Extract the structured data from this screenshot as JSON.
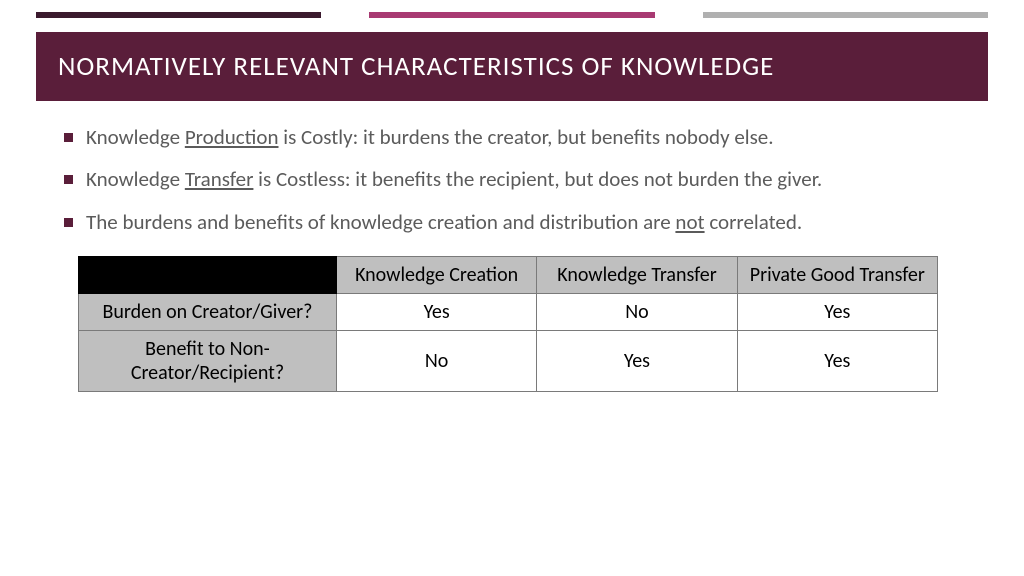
{
  "accent_bars": {
    "colors": [
      "#3b1a2e",
      "#a83a72",
      "#b0b0b0"
    ]
  },
  "title": {
    "text": "NORMATIVELY RELEVANT CHARACTERISTICS OF KNOWLEDGE",
    "background": "#5a1e3a",
    "color": "#ffffff",
    "fontsize": 27
  },
  "bullets": [
    {
      "pre": "Knowledge ",
      "u": "Production",
      "post": " is Costly: it burdens the creator, but benefits nobody else."
    },
    {
      "pre": "Knowledge ",
      "u": "Transfer",
      "post": " is Costless: it benefits the recipient, but does not burden the giver."
    },
    {
      "pre": "The burdens and benefits of knowledge creation and distribution are ",
      "u": "not",
      "post": " correlated."
    }
  ],
  "bullet_style": {
    "marker_color": "#5a1e3a",
    "text_color": "#5b5b5b",
    "fontsize": 21
  },
  "table": {
    "columns": [
      "Knowledge Creation",
      "Knowledge Transfer",
      "Private Good Transfer"
    ],
    "rows": [
      {
        "label": "Burden on Creator/Giver?",
        "cells": [
          "Yes",
          "No",
          "Yes"
        ]
      },
      {
        "label": "Benefit to Non-Creator/Recipient?",
        "cells": [
          "No",
          "Yes",
          "Yes"
        ]
      }
    ],
    "header_bg": "#bfbfbf",
    "corner_bg": "#000000",
    "cell_bg": "#ffffff",
    "border_color": "#7a7a7a",
    "fontsize": 20
  }
}
